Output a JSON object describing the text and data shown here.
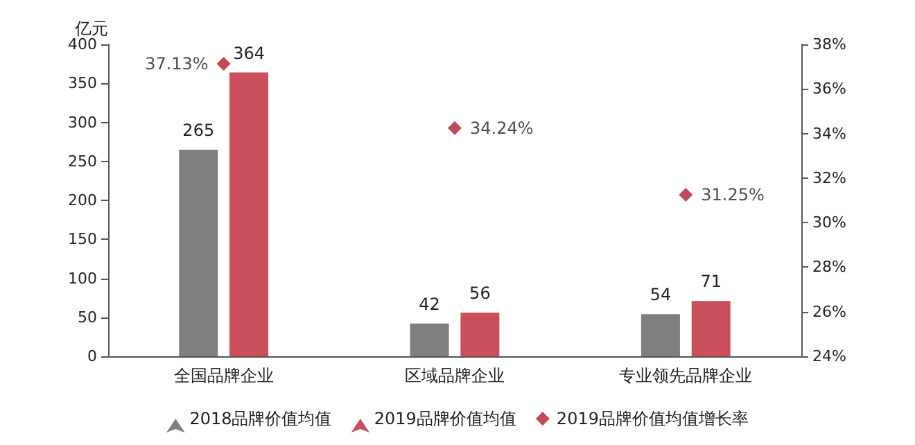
{
  "chart_data": {
    "type": "bar",
    "ylabel": "亿元",
    "categories": [
      "全国品牌企业",
      "区域品牌企业",
      "专业领先品牌企业"
    ],
    "series": [
      {
        "name": "2018品牌价值均值",
        "color": "#7f7f7f",
        "values": [
          265,
          42,
          54
        ]
      },
      {
        "name": "2019品牌价值均值",
        "color": "#c9505a",
        "values": [
          364,
          56,
          71
        ]
      },
      {
        "name": "2019品牌价值均值增长率",
        "type": "scatter",
        "axis": "y2",
        "marker": "diamond",
        "color": "#b01c2e",
        "values": [
          37.13,
          34.24,
          31.25
        ],
        "value_labels": [
          "37.13%",
          "34.24%",
          "31.25%"
        ]
      }
    ],
    "data_labels": true,
    "ylim": [
      0,
      400
    ],
    "yticks": [
      0,
      50,
      100,
      150,
      200,
      250,
      300,
      350,
      400
    ],
    "y2lim": [
      24,
      38
    ],
    "y2ticks": [
      {
        "value": 24,
        "label": "24%"
      },
      {
        "value": 26,
        "label": "26%"
      },
      {
        "value": 28,
        "label": "28%"
      },
      {
        "value": 30,
        "label": "30%"
      },
      {
        "value": 32,
        "label": "32%"
      },
      {
        "value": 34,
        "label": "34%"
      },
      {
        "value": 36,
        "label": "36%"
      },
      {
        "value": 38,
        "label": "38%"
      }
    ],
    "grid": false,
    "legend": "bottom"
  }
}
